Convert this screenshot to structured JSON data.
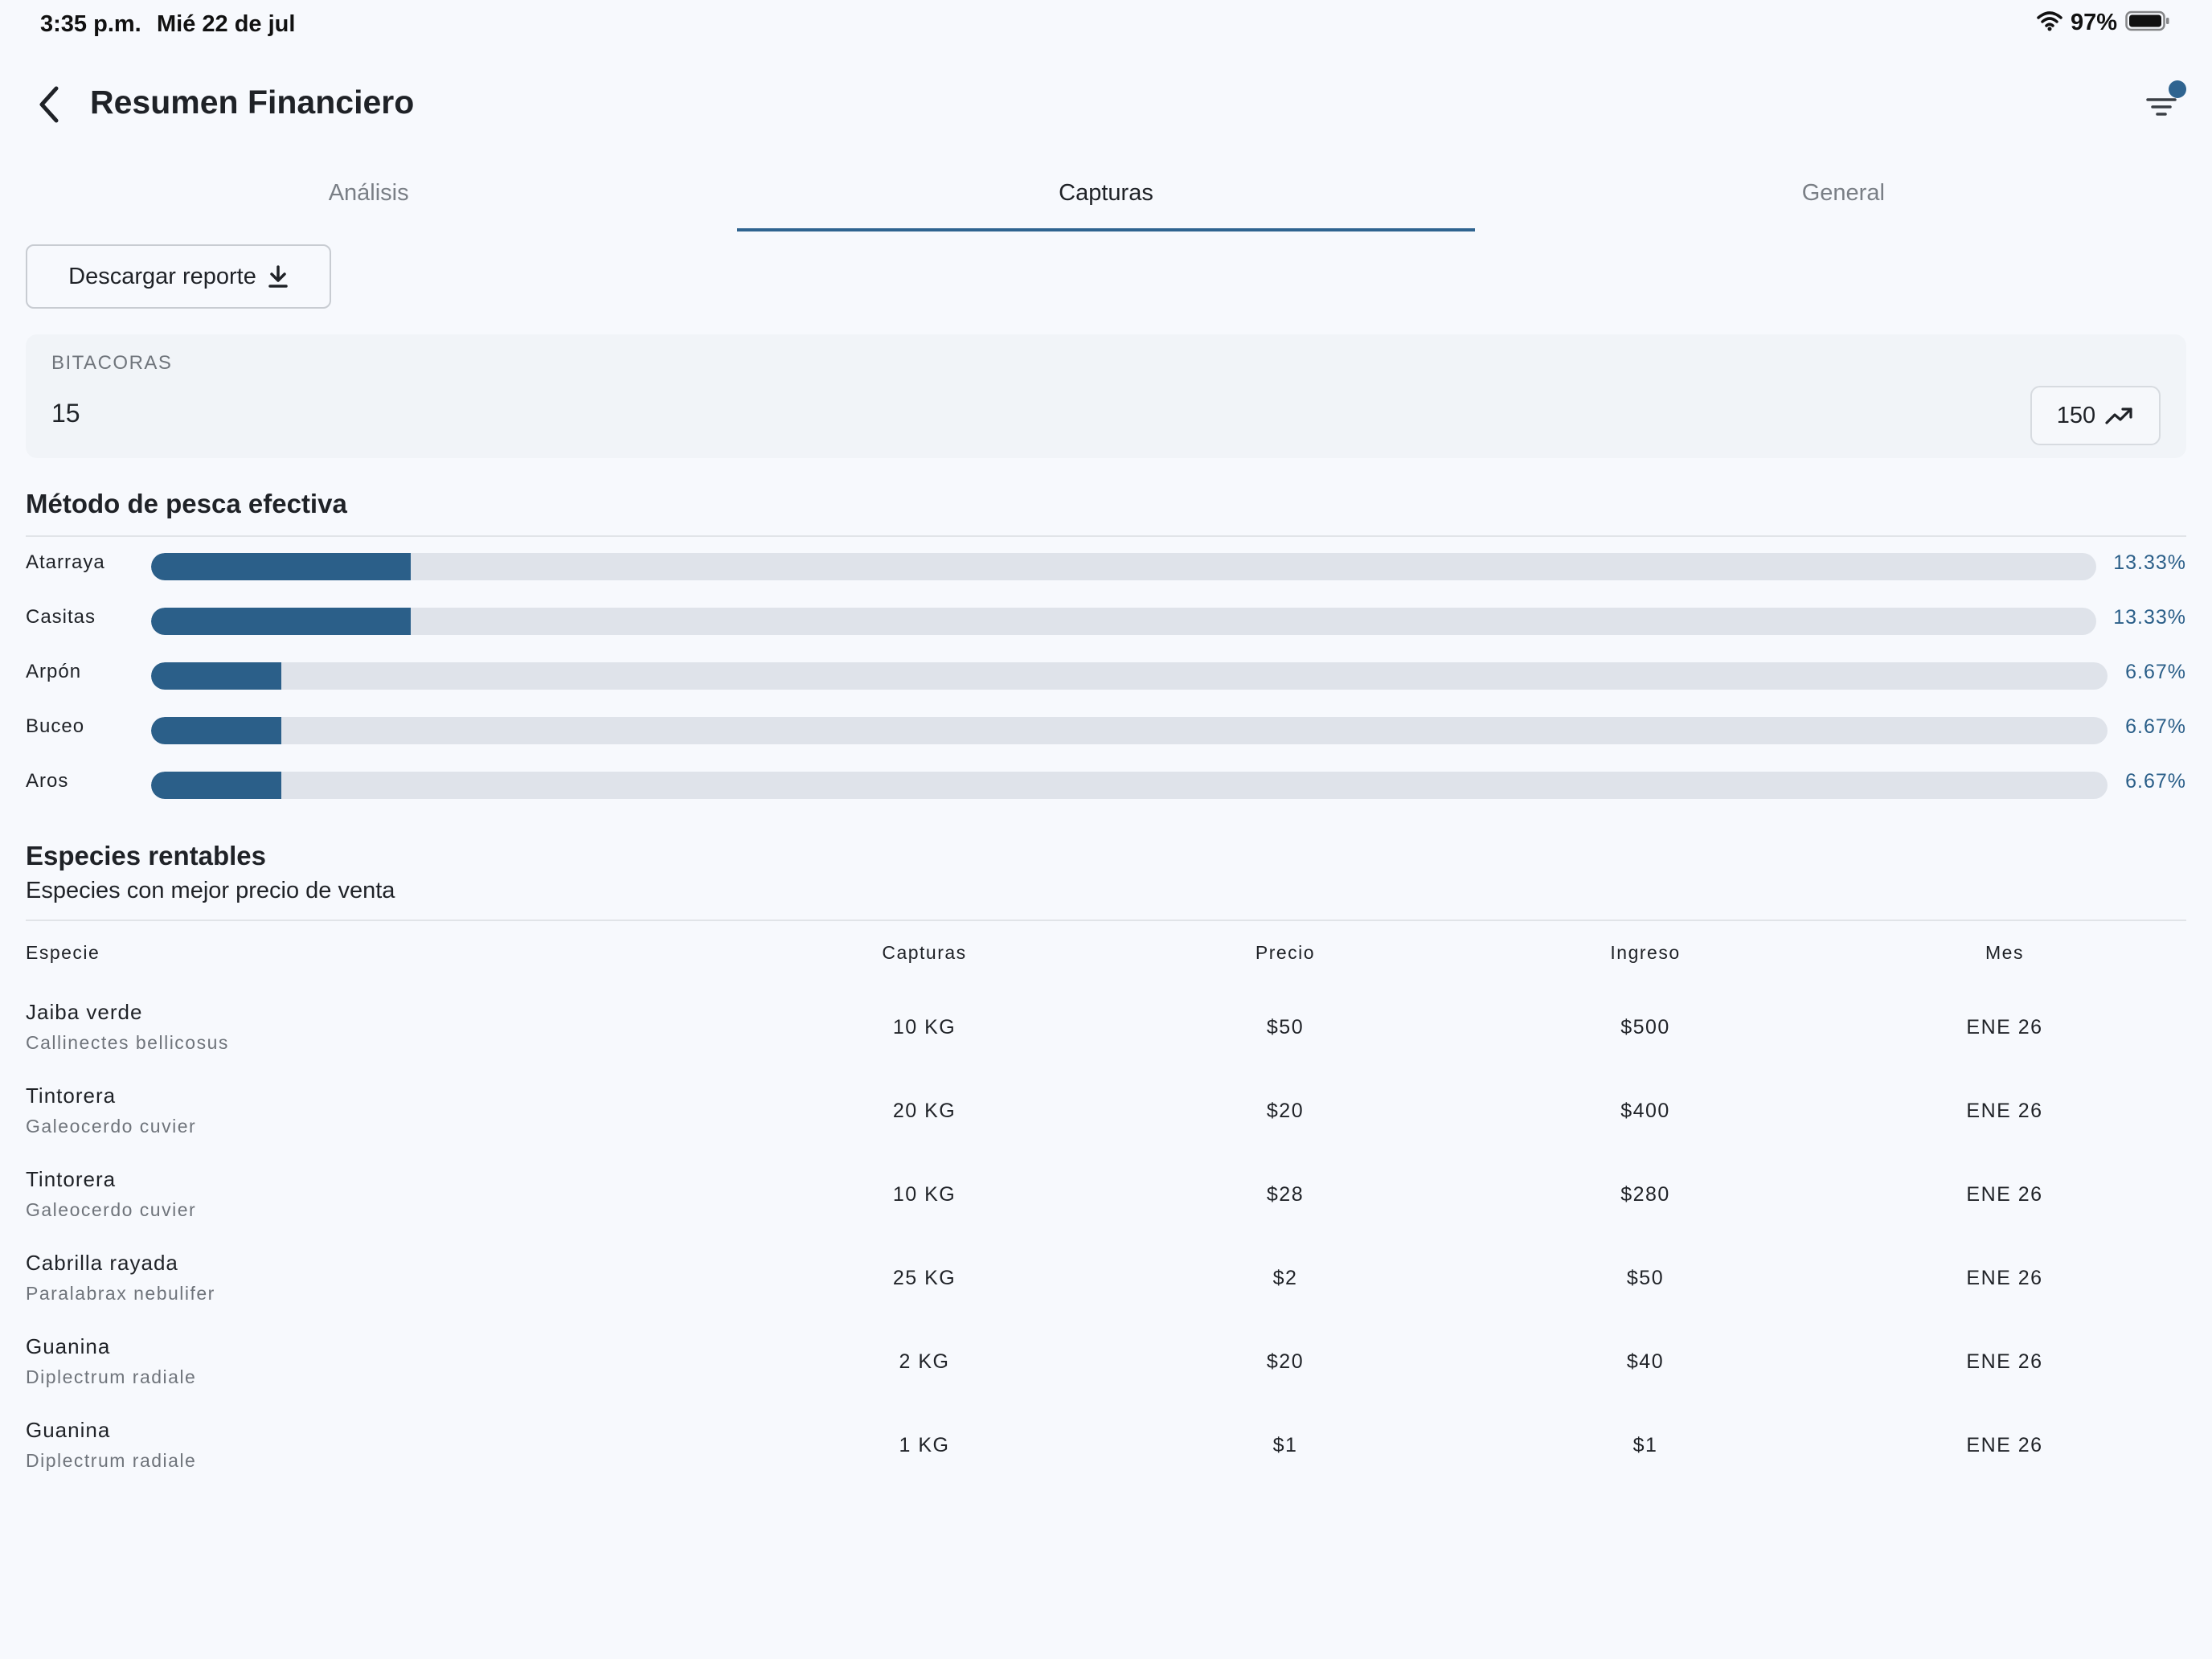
{
  "status_bar": {
    "time": "3:35 p.m.",
    "date": "Mié 22 de jul",
    "battery": "97%"
  },
  "header": {
    "title": "Resumen Financiero"
  },
  "tabs": [
    {
      "label": "Análisis"
    },
    {
      "label": "Capturas",
      "active": true
    },
    {
      "label": "General"
    }
  ],
  "download": {
    "label": "Descargar reporte"
  },
  "summary": {
    "label": "BITACORAS",
    "value": "15",
    "trend_value": "150"
  },
  "methods": {
    "title": "Método de pesca efectiva",
    "items": [
      {
        "label": "Atarraya",
        "percent": 13.33,
        "percent_text": "13.33%"
      },
      {
        "label": "Casitas",
        "percent": 13.33,
        "percent_text": "13.33%"
      },
      {
        "label": "Arpón",
        "percent": 6.67,
        "percent_text": "6.67%"
      },
      {
        "label": "Buceo",
        "percent": 6.67,
        "percent_text": "6.67%"
      },
      {
        "label": "Aros",
        "percent": 6.67,
        "percent_text": "6.67%"
      }
    ]
  },
  "species": {
    "title": "Especies rentables",
    "subtitle": "Especies con mejor precio de venta",
    "columns": [
      "Especie",
      "Capturas",
      "Precio",
      "Ingreso",
      "Mes"
    ],
    "rows": [
      {
        "name": "Jaiba verde",
        "scientific": "Callinectes bellicosus",
        "captures": "10 KG",
        "price": "$50",
        "income": "$500",
        "month": "ENE 26"
      },
      {
        "name": "Tintorera",
        "scientific": "Galeocerdo cuvier",
        "captures": "20 KG",
        "price": "$20",
        "income": "$400",
        "month": "ENE 26"
      },
      {
        "name": "Tintorera",
        "scientific": "Galeocerdo cuvier",
        "captures": "10 KG",
        "price": "$28",
        "income": "$280",
        "month": "ENE 26"
      },
      {
        "name": "Cabrilla rayada",
        "scientific": "Paralabrax nebulifer",
        "captures": "25 KG",
        "price": "$2",
        "income": "$50",
        "month": "ENE 26"
      },
      {
        "name": "Guanina",
        "scientific": "Diplectrum radiale",
        "captures": "2 KG",
        "price": "$20",
        "income": "$40",
        "month": "ENE 26"
      },
      {
        "name": "Guanina",
        "scientific": "Diplectrum radiale",
        "captures": "1 KG",
        "price": "$1",
        "income": "$1",
        "month": "ENE 26"
      }
    ]
  },
  "colors": {
    "accent": "#2b5f89",
    "track": "#dfe3ea",
    "background": "#f7f9fd"
  }
}
